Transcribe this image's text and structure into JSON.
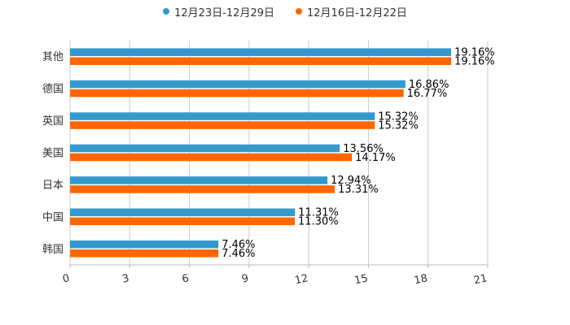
{
  "chart_data": {
    "type": "bar",
    "orientation": "horizontal",
    "categories": [
      "其他",
      "德国",
      "英国",
      "美国",
      "日本",
      "中国",
      "韩国"
    ],
    "series": [
      {
        "name": "12月23日-12月29日",
        "color": "#3399cc",
        "values": [
          19.16,
          16.86,
          15.32,
          13.56,
          12.94,
          11.31,
          7.46
        ],
        "labels": [
          "19.16%",
          "16.86%",
          "15.32%",
          "13.56%",
          "12.94%",
          "11.31%",
          "7.46%"
        ]
      },
      {
        "name": "12月16日-12月22日",
        "color": "#ff6600",
        "values": [
          19.16,
          16.77,
          15.32,
          14.17,
          13.31,
          11.3,
          7.46
        ],
        "labels": [
          "19.16%",
          "16.77%",
          "15.32%",
          "14.17%",
          "13.31%",
          "11.30%",
          "7.46%"
        ]
      }
    ],
    "xlim": [
      0,
      21
    ],
    "xticks": [
      0,
      3,
      6,
      9,
      12,
      15,
      18,
      21
    ],
    "xtick_labels": [
      "0",
      "3",
      "6",
      "9",
      "12",
      "15",
      "18",
      "21"
    ],
    "grid": true,
    "legend_position": "top-center",
    "title": "",
    "xlabel": "",
    "ylabel": ""
  }
}
